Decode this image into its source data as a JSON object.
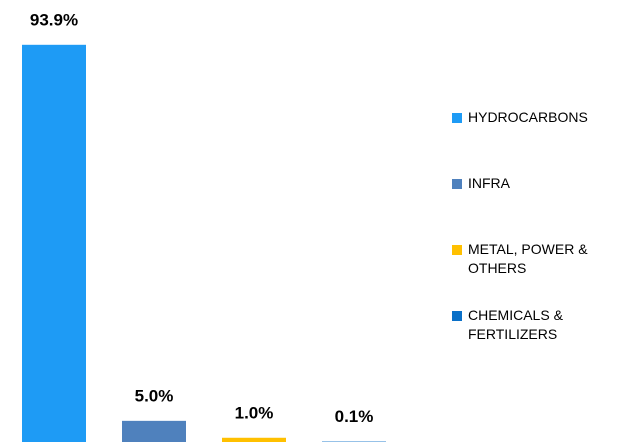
{
  "chart_data": {
    "type": "bar",
    "series": [
      {
        "name": "HYDROCARBONS",
        "color": "#1e9bf5",
        "values": [
          93.9
        ],
        "value_labels": [
          "93.9%"
        ]
      },
      {
        "name": "INFRA",
        "color": "#4f81bd",
        "values": [
          5.0
        ],
        "value_labels": [
          "5.0%"
        ]
      },
      {
        "name": "METAL, POWER & OTHERS",
        "color": "#ffc000",
        "values": [
          1.0
        ],
        "value_labels": [
          "1.0%"
        ]
      },
      {
        "name": "CHEMICALS & FERTILIZERS",
        "color": "#0a70c8",
        "values": [
          0.1
        ],
        "value_labels": [
          "0.1%"
        ]
      }
    ],
    "legend": "right"
  }
}
